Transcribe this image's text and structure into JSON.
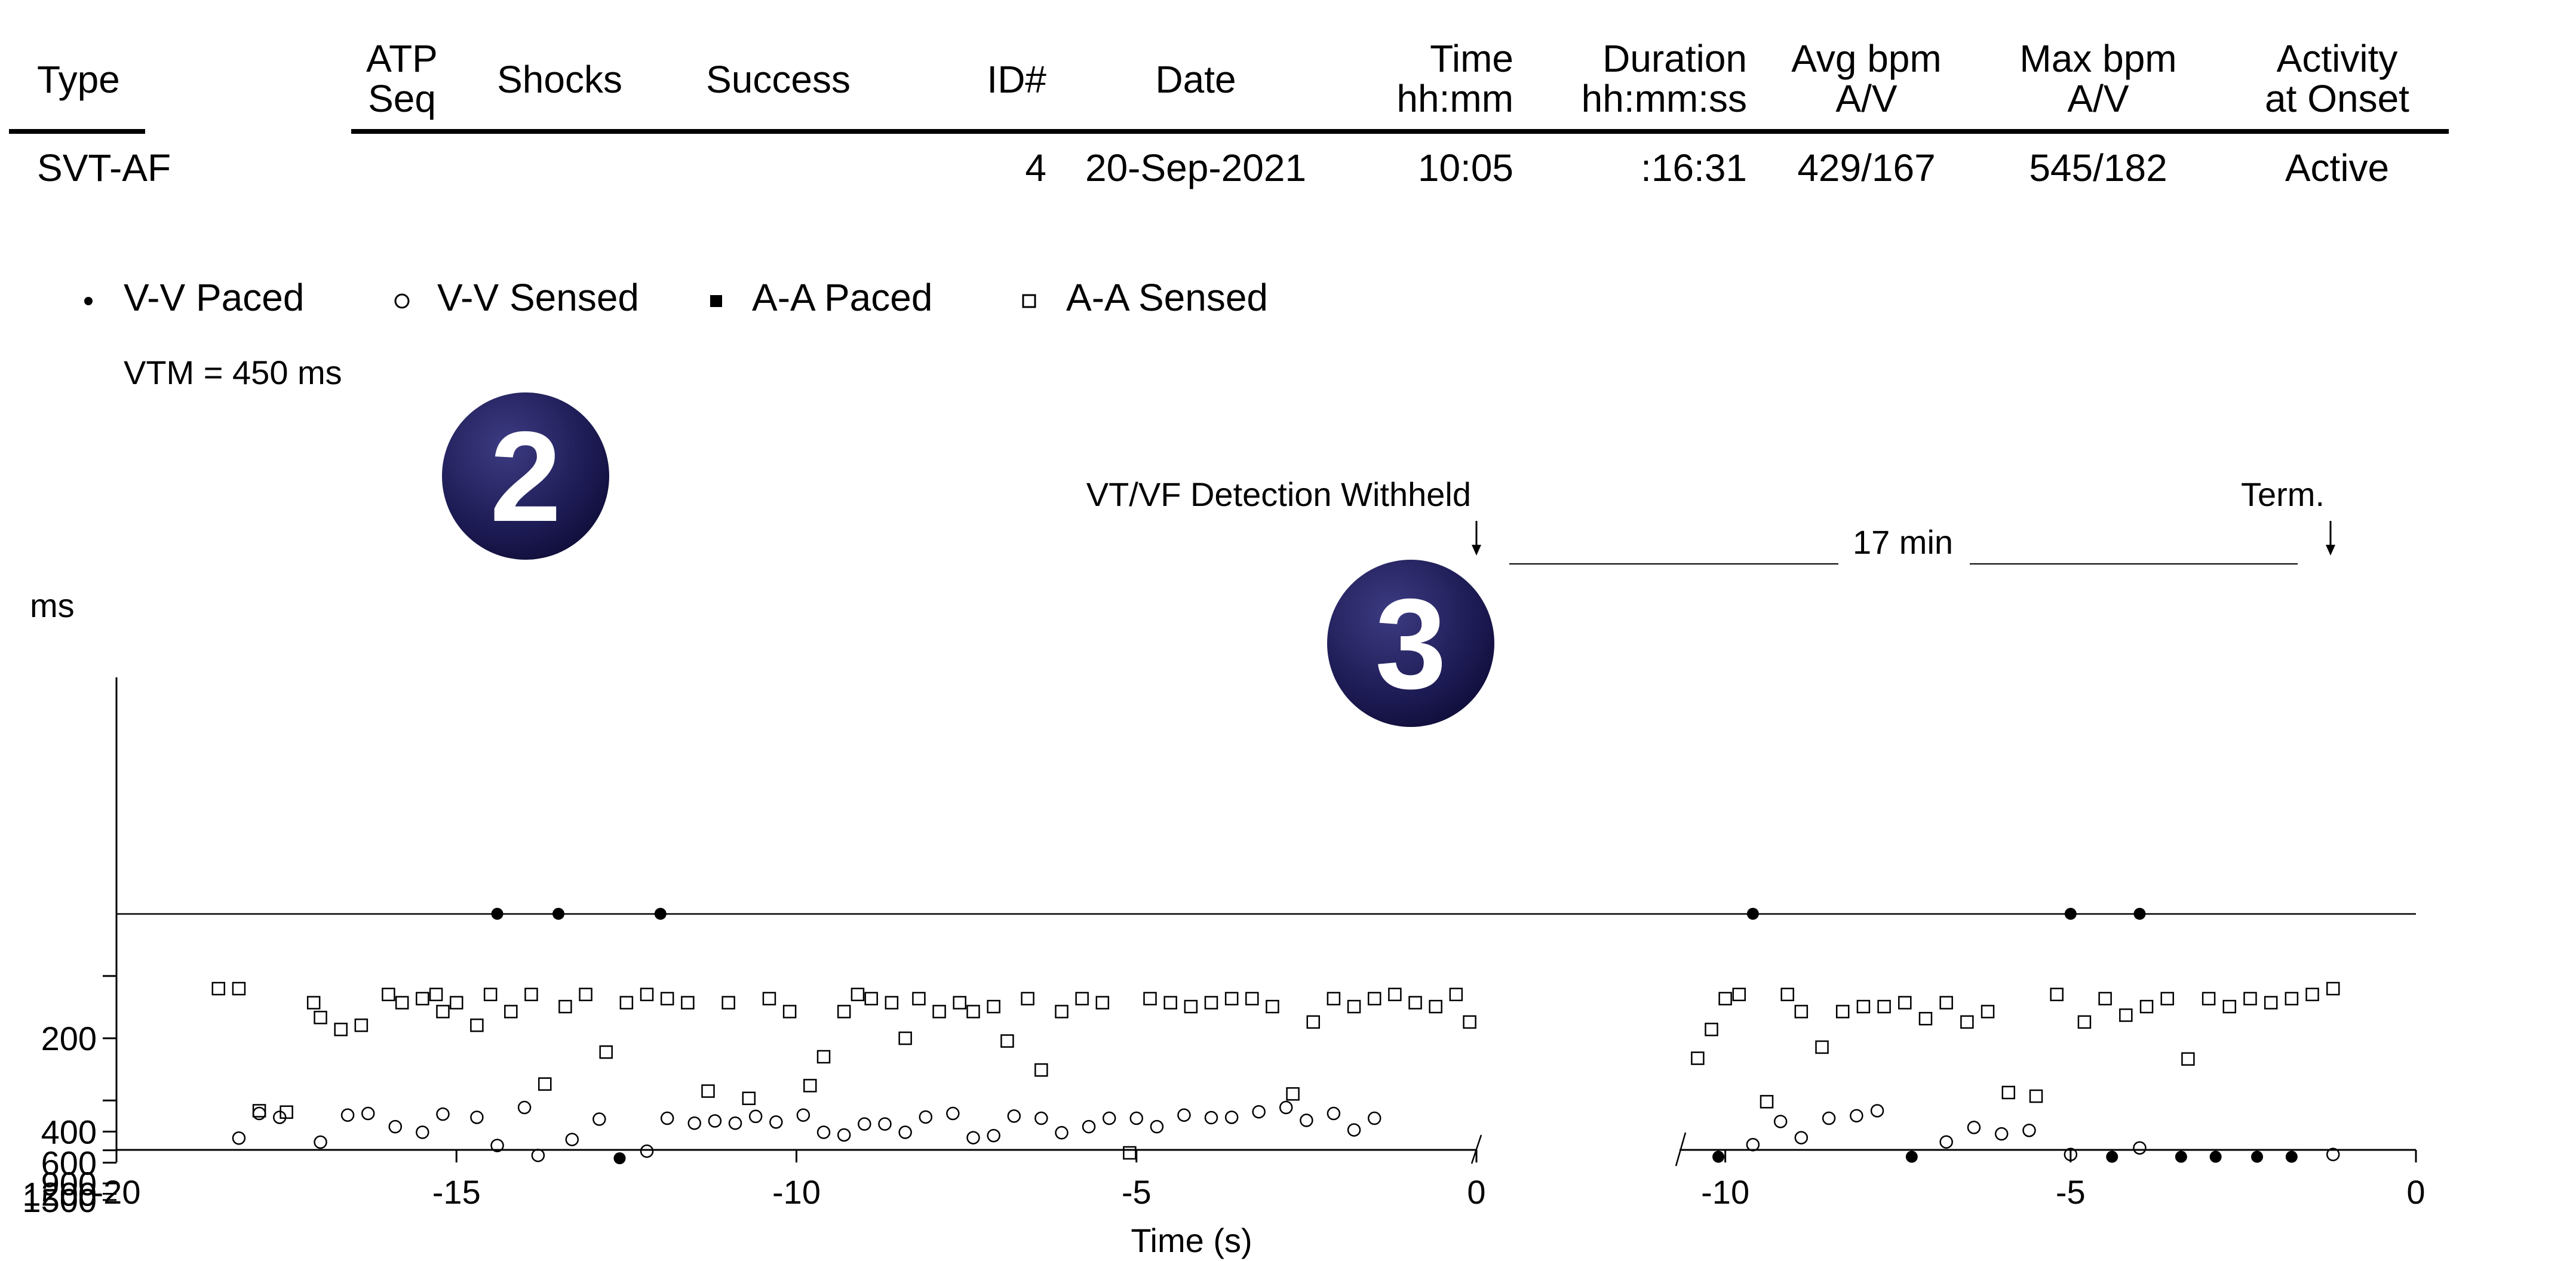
{
  "episode_table": {
    "headers": [
      {
        "key": "type",
        "lines": [
          "Type"
        ],
        "anchor": "start"
      },
      {
        "key": "atp",
        "lines": [
          "ATP",
          "Seq"
        ],
        "anchor": "middle"
      },
      {
        "key": "shocks",
        "lines": [
          "Shocks"
        ],
        "anchor": "middle"
      },
      {
        "key": "success",
        "lines": [
          "Success"
        ],
        "anchor": "middle"
      },
      {
        "key": "id",
        "lines": [
          "ID#"
        ],
        "anchor": "end"
      },
      {
        "key": "date",
        "lines": [
          "Date"
        ],
        "anchor": "middle"
      },
      {
        "key": "time",
        "lines": [
          "Time",
          "hh:mm"
        ],
        "anchor": "end"
      },
      {
        "key": "duration",
        "lines": [
          "Duration",
          "hh:mm:ss"
        ],
        "anchor": "end"
      },
      {
        "key": "avg",
        "lines": [
          "Avg bpm",
          "A/V"
        ],
        "anchor": "middle"
      },
      {
        "key": "max",
        "lines": [
          "Max bpm",
          "A/V"
        ],
        "anchor": "middle"
      },
      {
        "key": "activity",
        "lines": [
          "Activity",
          "at Onset"
        ],
        "anchor": "middle"
      }
    ],
    "row": {
      "type": "SVT-AF",
      "atp": "",
      "shocks": "",
      "success": "",
      "id": "4",
      "date": "20-Sep-2021",
      "time": "10:05",
      "duration": ":16:31",
      "avg": "429/167",
      "max": "545/182",
      "activity": "Active"
    }
  },
  "legend": [
    {
      "name": "V-V Paced",
      "symbol": "filled-circle"
    },
    {
      "name": "V-V Sensed",
      "symbol": "open-circle"
    },
    {
      "name": "A-A Paced",
      "symbol": "filled-square"
    },
    {
      "name": "A-A Sensed",
      "symbol": "open-square"
    }
  ],
  "vtm_label": "VTM = 450 ms",
  "badges": {
    "badge_2": "2",
    "badge_3": "3"
  },
  "annotations": {
    "detection_withheld": "VT/VF Detection Withheld",
    "gap_duration": "17 min",
    "termination": "Term."
  },
  "chart_data": {
    "type": "scatter",
    "title": "",
    "ylabel": "ms",
    "xlabel": "Time (s)",
    "y_scale": "reciprocal (rate-linear)",
    "y_ticks_labeled": [
      1500,
      1200,
      900,
      600,
      400,
      200
    ],
    "y_ticks_unlabeled": [
      500,
      300,
      150
    ],
    "threshold_line_ms": 450,
    "grid": false,
    "legend_position": "top-left",
    "panels": [
      {
        "name": "onset",
        "xlim": [
          -20,
          0
        ],
        "x_ticks": [
          -20,
          -15,
          -10,
          -5,
          0
        ],
        "vv_sensed": [
          [
            -18.2,
            430
          ],
          [
            -17.9,
            335
          ],
          [
            -17.6,
            347
          ],
          [
            -17.0,
            451
          ],
          [
            -16.6,
            340
          ],
          [
            -16.3,
            335
          ],
          [
            -15.9,
            380
          ],
          [
            -15.5,
            403
          ],
          [
            -15.2,
            337
          ],
          [
            -14.7,
            347
          ],
          [
            -14.4,
            470
          ],
          [
            -14.0,
            318
          ],
          [
            -13.8,
            537
          ],
          [
            -13.3,
            437
          ],
          [
            -12.9,
            353
          ],
          [
            -12.2,
            506
          ],
          [
            -11.9,
            350
          ],
          [
            -11.5,
            367
          ],
          [
            -11.2,
            359
          ],
          [
            -10.9,
            367
          ],
          [
            -10.6,
            344
          ],
          [
            -10.3,
            363
          ],
          [
            -9.9,
            340
          ],
          [
            -9.6,
            403
          ],
          [
            -9.3,
            415
          ],
          [
            -9.0,
            370
          ],
          [
            -8.7,
            370
          ],
          [
            -8.4,
            403
          ],
          [
            -8.1,
            346
          ],
          [
            -7.7,
            335
          ],
          [
            -7.4,
            428
          ],
          [
            -7.1,
            418
          ],
          [
            -6.8,
            343
          ],
          [
            -6.4,
            350
          ],
          [
            -6.1,
            405
          ],
          [
            -5.7,
            380
          ],
          [
            -5.4,
            350
          ],
          [
            -5.0,
            350
          ],
          [
            -4.7,
            380
          ],
          [
            -4.3,
            340
          ],
          [
            -3.9,
            348
          ],
          [
            -3.6,
            347
          ],
          [
            -3.2,
            330
          ],
          [
            -2.8,
            318
          ],
          [
            -2.5,
            357
          ],
          [
            -2.1,
            335
          ],
          [
            -1.8,
            393
          ],
          [
            -1.5,
            350
          ]
        ],
        "vv_paced": [
          [
            -14.4,
            120
          ],
          [
            -13.5,
            120
          ],
          [
            -12.6,
            560
          ],
          [
            -12.0,
            120
          ]
        ],
        "aa_sensed": [
          [
            -18.5,
            158
          ],
          [
            -18.2,
            158
          ],
          [
            -17.9,
            327
          ],
          [
            -17.5,
            331
          ],
          [
            -17.1,
            168
          ],
          [
            -17.0,
            180
          ],
          [
            -16.7,
            191
          ],
          [
            -16.4,
            187
          ],
          [
            -16.0,
            162
          ],
          [
            -15.8,
            168
          ],
          [
            -15.5,
            165
          ],
          [
            -15.3,
            162
          ],
          [
            -15.2,
            175
          ],
          [
            -15.0,
            168
          ],
          [
            -14.7,
            187
          ],
          [
            -14.5,
            162
          ],
          [
            -14.2,
            175
          ],
          [
            -13.9,
            162
          ],
          [
            -13.7,
            265
          ],
          [
            -13.4,
            171
          ],
          [
            -13.1,
            162
          ],
          [
            -12.8,
            216
          ],
          [
            -12.5,
            168
          ],
          [
            -12.2,
            162
          ],
          [
            -11.9,
            165
          ],
          [
            -11.6,
            168
          ],
          [
            -11.3,
            279
          ],
          [
            -11.0,
            168
          ],
          [
            -10.7,
            295
          ],
          [
            -10.4,
            165
          ],
          [
            -10.1,
            175
          ],
          [
            -9.8,
            268
          ],
          [
            -9.6,
            222
          ],
          [
            -9.3,
            175
          ],
          [
            -9.1,
            162
          ],
          [
            -8.9,
            165
          ],
          [
            -8.6,
            168
          ],
          [
            -8.4,
            200
          ],
          [
            -8.2,
            165
          ],
          [
            -7.9,
            175
          ],
          [
            -7.6,
            168
          ],
          [
            -7.4,
            175
          ],
          [
            -7.1,
            171
          ],
          [
            -6.9,
            203
          ],
          [
            -6.6,
            165
          ],
          [
            -6.4,
            241
          ],
          [
            -6.1,
            175
          ],
          [
            -5.8,
            165
          ],
          [
            -5.5,
            168
          ],
          [
            -5.1,
            518
          ],
          [
            -4.8,
            165
          ],
          [
            -4.5,
            168
          ],
          [
            -4.2,
            171
          ],
          [
            -3.9,
            168
          ],
          [
            -3.6,
            165
          ],
          [
            -3.3,
            165
          ],
          [
            -3.0,
            171
          ],
          [
            -2.7,
            285
          ],
          [
            -2.4,
            184
          ],
          [
            -2.1,
            165
          ],
          [
            -1.8,
            171
          ],
          [
            -1.5,
            165
          ],
          [
            -1.2,
            162
          ],
          [
            -0.9,
            168
          ],
          [
            -0.6,
            171
          ],
          [
            -0.3,
            162
          ],
          [
            -0.1,
            184
          ]
        ]
      },
      {
        "name": "termination",
        "xlim": [
          -11,
          0
        ],
        "x_ticks": [
          -10,
          -5,
          0
        ],
        "vv_sensed": [
          [
            -9.6,
            465
          ],
          [
            -9.2,
            361
          ],
          [
            -8.9,
            428
          ],
          [
            -8.5,
            350
          ],
          [
            -8.1,
            342
          ],
          [
            -7.8,
            327
          ],
          [
            -6.8,
            450
          ],
          [
            -6.4,
            383
          ],
          [
            -6.0,
            410
          ],
          [
            -5.6,
            395
          ],
          [
            -5.0,
            530
          ],
          [
            -4.0,
            485
          ],
          [
            -1.2,
            530
          ]
        ],
        "vv_paced": [
          [
            -10.1,
            548
          ],
          [
            -9.6,
            120
          ],
          [
            -7.3,
            548
          ],
          [
            -5.0,
            120
          ],
          [
            -4.4,
            548
          ],
          [
            -4.0,
            120
          ],
          [
            -3.4,
            548
          ],
          [
            -2.9,
            548
          ],
          [
            -2.3,
            548
          ],
          [
            -1.8,
            548
          ]
        ],
        "aa_sensed": [
          [
            -10.4,
            224
          ],
          [
            -10.2,
            191
          ],
          [
            -10.0,
            165
          ],
          [
            -9.8,
            162
          ],
          [
            -9.4,
            303
          ],
          [
            -9.1,
            162
          ],
          [
            -8.9,
            175
          ],
          [
            -8.6,
            210
          ],
          [
            -8.3,
            175
          ],
          [
            -8.0,
            171
          ],
          [
            -7.7,
            171
          ],
          [
            -7.4,
            168
          ],
          [
            -7.1,
            181
          ],
          [
            -6.8,
            168
          ],
          [
            -6.5,
            184
          ],
          [
            -6.2,
            175
          ],
          [
            -5.9,
            282
          ],
          [
            -5.5,
            290
          ],
          [
            -5.2,
            162
          ],
          [
            -4.8,
            184
          ],
          [
            -4.5,
            165
          ],
          [
            -4.2,
            178
          ],
          [
            -3.9,
            171
          ],
          [
            -3.6,
            165
          ],
          [
            -3.3,
            225
          ],
          [
            -3.0,
            165
          ],
          [
            -2.7,
            171
          ],
          [
            -2.4,
            165
          ],
          [
            -2.1,
            168
          ],
          [
            -1.8,
            165
          ],
          [
            -1.5,
            162
          ],
          [
            -1.2,
            158
          ]
        ]
      }
    ]
  }
}
